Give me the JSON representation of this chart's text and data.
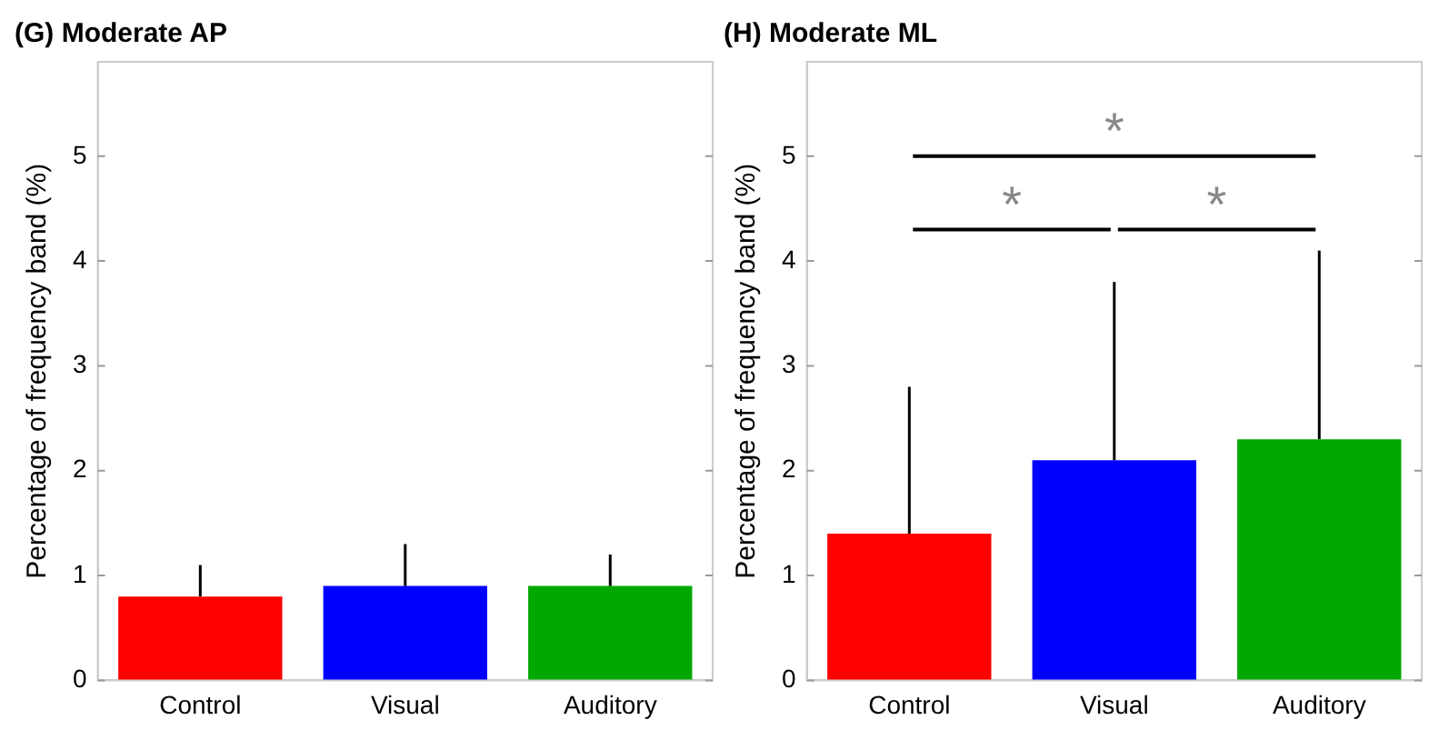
{
  "chart_data": [
    {
      "type": "bar",
      "title": "(G) Moderate AP",
      "ylabel": "Percentage of frequency band (%)",
      "categories": [
        "Control",
        "Visual",
        "Auditory"
      ],
      "values": [
        0.8,
        0.9,
        0.9
      ],
      "colors": [
        "#ff0000",
        "#0000ff",
        "#00a800"
      ],
      "errors": [
        [
          0.8,
          1.1
        ],
        [
          0.9,
          1.3
        ],
        [
          0.9,
          1.2
        ]
      ],
      "ylim": [
        0,
        5.9
      ],
      "yticks": [
        0,
        1,
        2,
        3,
        4,
        5
      ]
    },
    {
      "type": "bar",
      "title": "(H) Moderate ML",
      "ylabel": "Percentage of frequency band (%)",
      "categories": [
        "Control",
        "Visual",
        "Auditory"
      ],
      "values": [
        1.4,
        2.1,
        2.3
      ],
      "colors": [
        "#ff0000",
        "#0000ff",
        "#00a800"
      ],
      "errors": [
        [
          1.4,
          2.8
        ],
        [
          2.1,
          3.8
        ],
        [
          2.3,
          4.1
        ]
      ],
      "ylim": [
        0,
        5.9
      ],
      "yticks": [
        0,
        1,
        2,
        3,
        4,
        5
      ],
      "annotations": [
        "*",
        "*",
        "*"
      ]
    }
  ]
}
